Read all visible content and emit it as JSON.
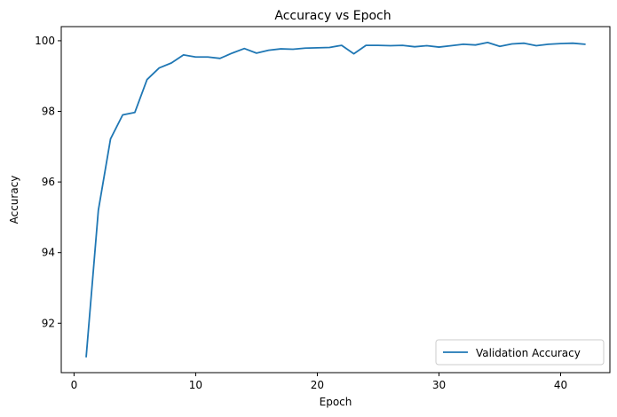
{
  "chart_data": {
    "type": "line",
    "title": "Accuracy vs Epoch",
    "xlabel": "Epoch",
    "ylabel": "Accuracy",
    "xlim": [
      -1.05,
      44.05
    ],
    "ylim": [
      90.6,
      100.4
    ],
    "xticks": [
      0,
      10,
      20,
      30,
      40
    ],
    "yticks": [
      92,
      94,
      96,
      98,
      100
    ],
    "grid": false,
    "legend_position": "bottom-right",
    "series": [
      {
        "name": "Validation Accuracy",
        "color": "#1f77b4",
        "x": [
          1,
          2,
          3,
          4,
          5,
          6,
          7,
          8,
          9,
          10,
          11,
          12,
          13,
          14,
          15,
          16,
          17,
          18,
          19,
          20,
          21,
          22,
          23,
          24,
          25,
          26,
          27,
          28,
          29,
          30,
          31,
          32,
          33,
          34,
          35,
          36,
          37,
          38,
          39,
          40,
          41,
          42
        ],
        "y": [
          91.05,
          95.2,
          97.22,
          97.9,
          97.97,
          98.9,
          99.23,
          99.37,
          99.6,
          99.54,
          99.54,
          99.5,
          99.65,
          99.78,
          99.65,
          99.73,
          99.77,
          99.76,
          99.79,
          99.8,
          99.81,
          99.87,
          99.63,
          99.87,
          99.87,
          99.86,
          99.87,
          99.83,
          99.86,
          99.82,
          99.86,
          99.9,
          99.88,
          99.95,
          99.84,
          99.91,
          99.93,
          99.86,
          99.9,
          99.92,
          99.93,
          99.9
        ]
      }
    ]
  }
}
